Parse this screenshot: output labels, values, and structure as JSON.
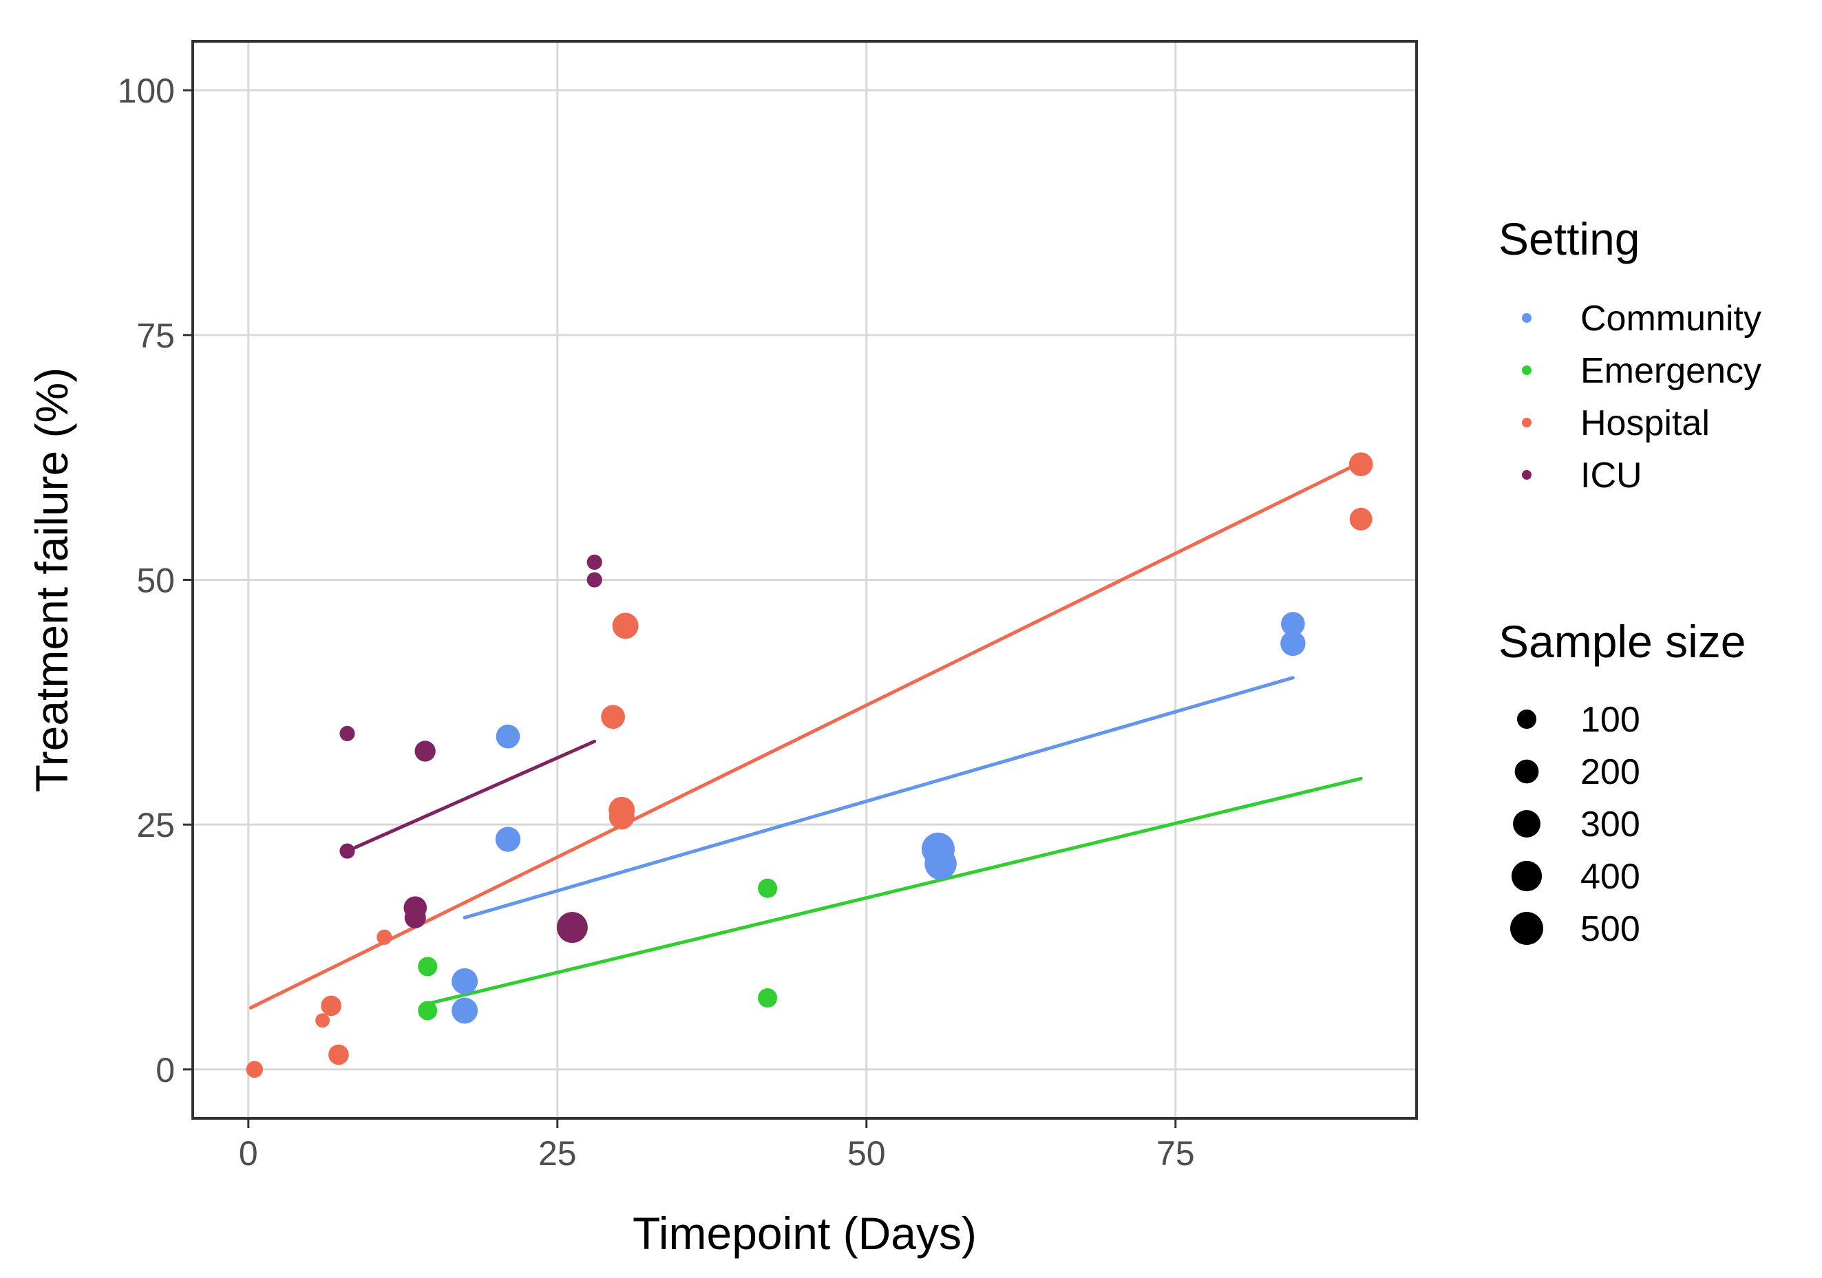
{
  "chart_data": {
    "type": "scatter",
    "title": "",
    "xlabel": "Timepoint (Days)",
    "ylabel": "Treatment failure (%)",
    "xlim": [
      -4.5,
      94.5
    ],
    "ylim": [
      -5,
      105
    ],
    "xticks": [
      0,
      25,
      50,
      75
    ],
    "yticks": [
      0,
      25,
      50,
      75,
      100
    ],
    "grid": true,
    "legend_position": "right",
    "color_legend_title": "Setting",
    "size_legend_title": "Sample size",
    "size_legend": [
      100,
      200,
      300,
      400,
      500
    ],
    "series": [
      {
        "name": "Community",
        "color": "#6495ED",
        "points": [
          {
            "x": 17.5,
            "y": 9,
            "n": 260
          },
          {
            "x": 17.5,
            "y": 6,
            "n": 260
          },
          {
            "x": 21,
            "y": 23.5,
            "n": 230
          },
          {
            "x": 21,
            "y": 34,
            "n": 200
          },
          {
            "x": 55.8,
            "y": 22.5,
            "n": 500
          },
          {
            "x": 56,
            "y": 21,
            "n": 460
          },
          {
            "x": 84.5,
            "y": 45.5,
            "n": 200
          },
          {
            "x": 84.5,
            "y": 43.5,
            "n": 230
          }
        ],
        "trend": [
          [
            17.5,
            15.5
          ],
          [
            84.5,
            40
          ]
        ]
      },
      {
        "name": "Emergency",
        "color": "#32CD32",
        "points": [
          {
            "x": 14.5,
            "y": 10.5,
            "n": 100
          },
          {
            "x": 14.5,
            "y": 6,
            "n": 100
          },
          {
            "x": 42,
            "y": 18.5,
            "n": 100
          },
          {
            "x": 42,
            "y": 7.3,
            "n": 100
          }
        ],
        "trend": [
          [
            14.5,
            6.7
          ],
          [
            90,
            29.7
          ]
        ]
      },
      {
        "name": "Hospital",
        "color": "#EE6A50",
        "points": [
          {
            "x": 0.5,
            "y": 0,
            "n": 60
          },
          {
            "x": 6,
            "y": 5,
            "n": 30
          },
          {
            "x": 6.7,
            "y": 6.5,
            "n": 120
          },
          {
            "x": 7.3,
            "y": 1.5,
            "n": 120
          },
          {
            "x": 11,
            "y": 13.5,
            "n": 40
          },
          {
            "x": 29.5,
            "y": 36,
            "n": 200
          },
          {
            "x": 30.2,
            "y": 26.5,
            "n": 260
          },
          {
            "x": 30.2,
            "y": 25.8,
            "n": 240
          },
          {
            "x": 30.5,
            "y": 45.3,
            "n": 260
          },
          {
            "x": 90,
            "y": 61.8,
            "n": 200
          },
          {
            "x": 90,
            "y": 56.2,
            "n": 170
          }
        ],
        "trend": [
          [
            0.2,
            6.3
          ],
          [
            90,
            62
          ]
        ]
      },
      {
        "name": "ICU",
        "color": "#7E2461",
        "points": [
          {
            "x": 8,
            "y": 34.3,
            "n": 40
          },
          {
            "x": 8,
            "y": 22.3,
            "n": 40
          },
          {
            "x": 13.5,
            "y": 16.5,
            "n": 180
          },
          {
            "x": 13.5,
            "y": 15.5,
            "n": 140
          },
          {
            "x": 14.3,
            "y": 32.5,
            "n": 130
          },
          {
            "x": 26.2,
            "y": 14.5,
            "n": 420
          },
          {
            "x": 28,
            "y": 51.8,
            "n": 40
          },
          {
            "x": 28,
            "y": 50,
            "n": 40
          }
        ],
        "trend": [
          [
            8,
            22.3
          ],
          [
            28,
            33.5
          ]
        ]
      }
    ]
  }
}
